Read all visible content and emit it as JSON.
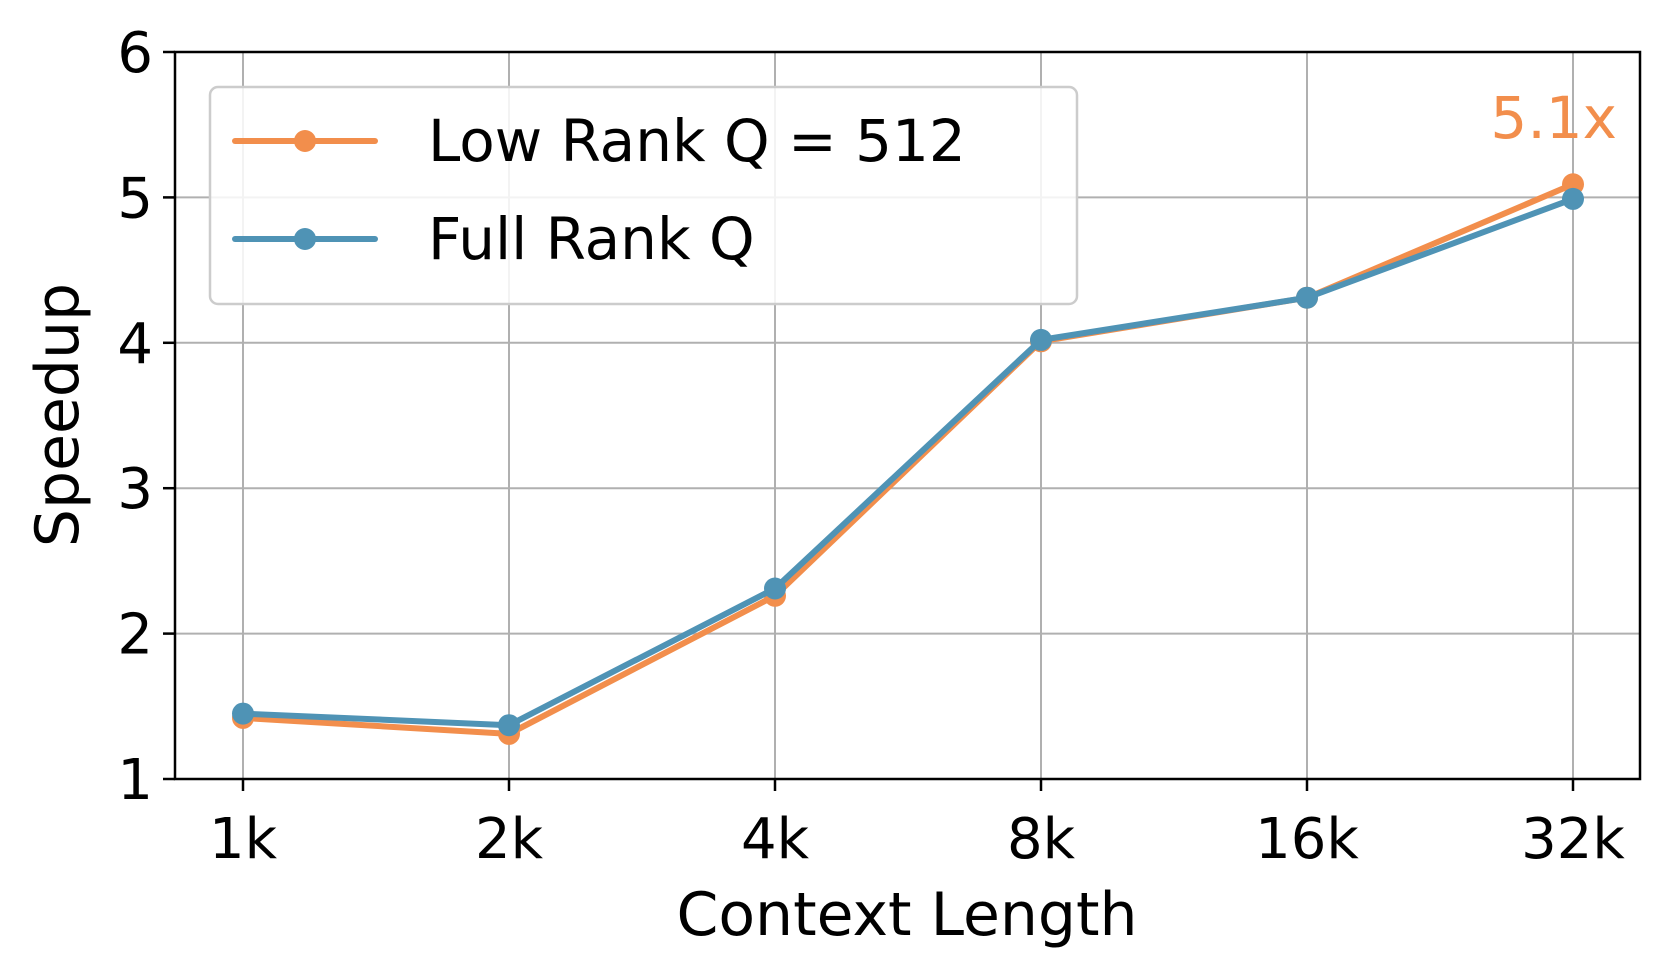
{
  "chart_data": {
    "type": "line",
    "title": "",
    "xlabel": "Context Length",
    "ylabel": "Speedup",
    "categories": [
      "1k",
      "2k",
      "4k",
      "8k",
      "16k",
      "32k"
    ],
    "ylim": [
      1,
      6
    ],
    "yticks": [
      "1",
      "2",
      "3",
      "4",
      "5",
      "6"
    ],
    "grid": true,
    "legend_position": "top-left",
    "series": [
      {
        "name": "Low Rank Q = 512",
        "color": "#f28e4c",
        "values": [
          1.42,
          1.31,
          2.26,
          4.01,
          4.31,
          5.09
        ]
      },
      {
        "name": "Full Rank Q",
        "color": "#4f93b5",
        "values": [
          1.45,
          1.37,
          2.31,
          4.02,
          4.31,
          4.99
        ]
      }
    ],
    "annotation": {
      "text": "5.1x",
      "color": "#f28e4c"
    }
  }
}
